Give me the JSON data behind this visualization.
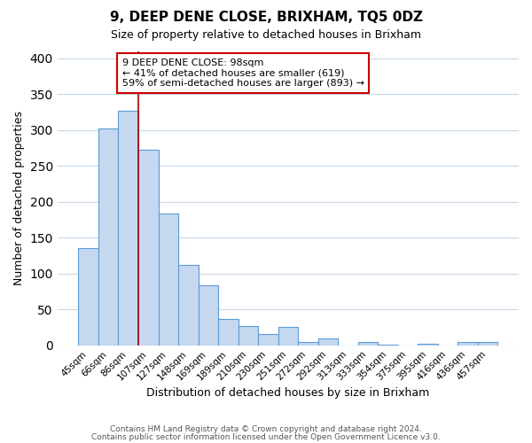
{
  "title": "9, DEEP DENE CLOSE, BRIXHAM, TQ5 0DZ",
  "subtitle": "Size of property relative to detached houses in Brixham",
  "xlabel": "Distribution of detached houses by size in Brixham",
  "ylabel": "Number of detached properties",
  "bar_labels": [
    "45sqm",
    "66sqm",
    "86sqm",
    "107sqm",
    "127sqm",
    "148sqm",
    "169sqm",
    "189sqm",
    "210sqm",
    "230sqm",
    "251sqm",
    "272sqm",
    "292sqm",
    "313sqm",
    "333sqm",
    "354sqm",
    "375sqm",
    "395sqm",
    "416sqm",
    "436sqm",
    "457sqm"
  ],
  "bar_values": [
    135,
    302,
    327,
    272,
    183,
    112,
    83,
    37,
    27,
    16,
    25,
    5,
    10,
    0,
    5,
    1,
    0,
    2,
    0,
    4,
    5
  ],
  "bar_color": "#c5d8f0",
  "bar_edge_color": "#5b9bd5",
  "red_line_x": 2.5,
  "annotation_title": "9 DEEP DENE CLOSE: 98sqm",
  "annotation_line1": "← 41% of detached houses are smaller (619)",
  "annotation_line2": "59% of semi-detached houses are larger (893) →",
  "annotation_box_facecolor": "#ffffff",
  "annotation_box_edgecolor": "#cc0000",
  "footer_line1": "Contains HM Land Registry data © Crown copyright and database right 2024.",
  "footer_line2": "Contains public sector information licensed under the Open Government Licence v3.0.",
  "ylim": [
    0,
    410
  ],
  "figsize": [
    6.0,
    5.0
  ],
  "dpi": 100,
  "bg_color": "#ffffff",
  "grid_color": "#c8d8e8"
}
